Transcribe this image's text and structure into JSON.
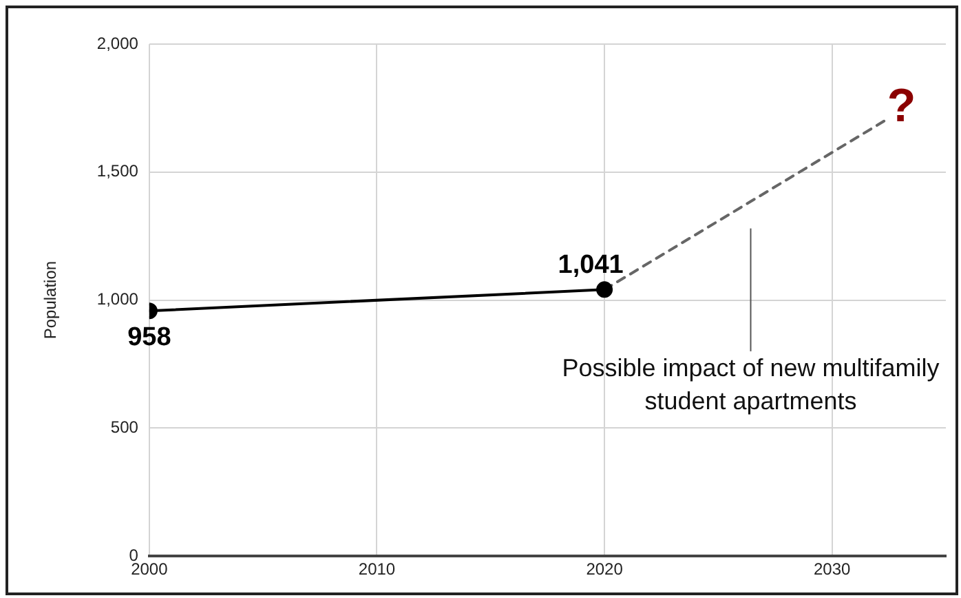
{
  "chart_data": {
    "type": "line",
    "ylabel": "Population",
    "series": [
      {
        "color": "#000000",
        "x": [
          2000,
          2020
        ],
        "values": [
          958,
          1041
        ],
        "value_labels": [
          "958",
          "1,041"
        ],
        "marker": "circle",
        "line_style": "solid"
      },
      {
        "color": "#666666",
        "x": [
          2020,
          2032.3
        ],
        "values": [
          1041,
          1700
        ],
        "marker": "none",
        "line_style": "dashed"
      }
    ],
    "xlim": [
      2000,
      2035
    ],
    "xticks": [
      2000,
      2010,
      2020,
      2030
    ],
    "ylim": [
      0,
      2000
    ],
    "yticks": [
      0,
      {
        "value": 500,
        "label": "500"
      },
      {
        "value": 1000,
        "label": "1,000"
      },
      {
        "value": 1500,
        "label": "1,500"
      },
      {
        "value": 2000,
        "label": "2,000"
      }
    ],
    "grid": true,
    "legend": false,
    "annotations": [
      {
        "text": "?",
        "x": 2032.3,
        "y": 1700
      },
      "Possible impact of new multifamily student apartments"
    ]
  }
}
